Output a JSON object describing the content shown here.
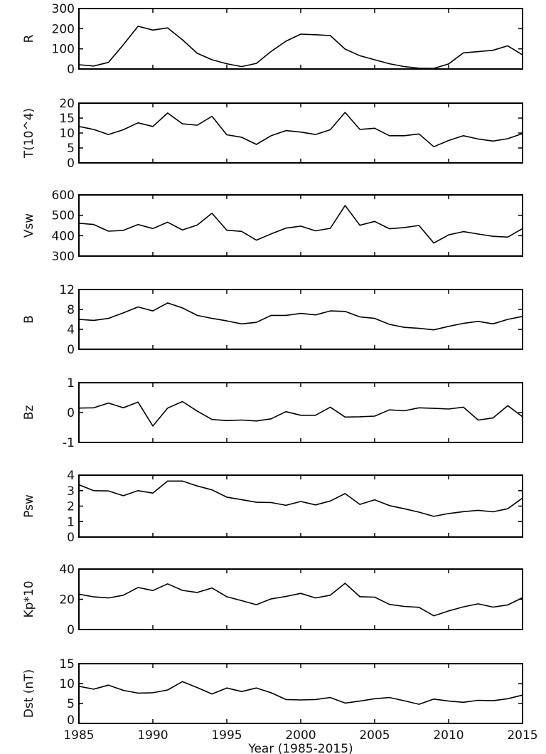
{
  "chart_data": {
    "type": "line",
    "xlabel": "Year (1985-2015)",
    "xlim": [
      1985,
      2015
    ],
    "x_ticks": [
      1985,
      1990,
      1995,
      2000,
      2005,
      2010,
      2015
    ],
    "x_tick_labels": [
      "1985",
      "1990",
      "1995",
      "2000",
      "2005",
      "2010",
      "2015"
    ],
    "x": [
      1985,
      1986,
      1987,
      1988,
      1989,
      1990,
      1991,
      1992,
      1993,
      1994,
      1995,
      1996,
      1997,
      1998,
      1999,
      2000,
      2001,
      2002,
      2003,
      2004,
      2005,
      2006,
      2007,
      2008,
      2009,
      2010,
      2011,
      2012,
      2013,
      2014,
      2015
    ],
    "grid": false,
    "panels": [
      {
        "ylabel": "R",
        "ylim": [
          0,
          300
        ],
        "y_ticks": [
          0,
          100,
          200,
          300
        ],
        "y_tick_labels": [
          "0",
          "100",
          "200",
          "300"
        ],
        "values": [
          21,
          15,
          33,
          120,
          212,
          193,
          204,
          145,
          78,
          46,
          26,
          12,
          28,
          87,
          138,
          173,
          170,
          166,
          99,
          66,
          46,
          26,
          12,
          4,
          3,
          25,
          80,
          86,
          93,
          115,
          70
        ]
      },
      {
        "ylabel": "T(10^4)",
        "ylabel_base": "T(10",
        "ylabel_sup": "4",
        "ylabel_end": ")",
        "ylim": [
          0,
          20
        ],
        "y_ticks": [
          0,
          5,
          10,
          15,
          20
        ],
        "y_tick_labels": [
          "0",
          "5",
          "10",
          "15",
          "20"
        ],
        "values": [
          12.2,
          11.2,
          9.5,
          11.1,
          13.4,
          12.2,
          16.7,
          13.1,
          12.6,
          15.6,
          9.4,
          8.6,
          6.2,
          9.1,
          10.8,
          10.3,
          9.5,
          11.1,
          16.9,
          11.2,
          11.6,
          9.1,
          9.1,
          9.7,
          5.4,
          7.5,
          9.1,
          8.0,
          7.3,
          8.1,
          9.8
        ]
      },
      {
        "ylabel": "Vsw",
        "ylim": [
          300,
          600
        ],
        "y_ticks": [
          300,
          400,
          500,
          600
        ],
        "y_tick_labels": [
          "300",
          "400",
          "500",
          "600"
        ],
        "values": [
          461,
          455,
          422,
          426,
          455,
          435,
          466,
          428,
          452,
          510,
          427,
          421,
          378,
          409,
          437,
          447,
          424,
          436,
          548,
          451,
          470,
          434,
          440,
          450,
          364,
          404,
          420,
          408,
          397,
          393,
          435
        ]
      },
      {
        "ylabel": "B",
        "ylim": [
          0,
          12
        ],
        "y_ticks": [
          0,
          4,
          8,
          12
        ],
        "y_tick_labels": [
          "0",
          "4",
          "8",
          "12"
        ],
        "values": [
          6.0,
          5.8,
          6.2,
          7.3,
          8.5,
          7.7,
          9.3,
          8.3,
          6.8,
          6.2,
          5.7,
          5.1,
          5.4,
          6.8,
          6.8,
          7.2,
          6.9,
          7.7,
          7.6,
          6.5,
          6.2,
          5.0,
          4.4,
          4.2,
          3.9,
          4.6,
          5.2,
          5.6,
          5.1,
          6.0,
          6.6
        ]
      },
      {
        "ylabel": "Bz",
        "ylim": [
          -1,
          1
        ],
        "y_ticks": [
          -1,
          0,
          1
        ],
        "y_tick_labels": [
          "-1",
          "0",
          "1"
        ],
        "values": [
          0.15,
          0.16,
          0.32,
          0.16,
          0.35,
          -0.45,
          0.15,
          0.37,
          0.05,
          -0.23,
          -0.27,
          -0.25,
          -0.28,
          -0.21,
          0.03,
          -0.09,
          -0.09,
          0.18,
          -0.15,
          -0.14,
          -0.12,
          0.09,
          0.06,
          0.16,
          0.14,
          0.12,
          0.18,
          -0.25,
          -0.18,
          0.23,
          -0.14
        ]
      },
      {
        "ylabel": "Psw",
        "ylim": [
          0,
          4
        ],
        "y_ticks": [
          0,
          1,
          2,
          3,
          4
        ],
        "y_tick_labels": [
          "0",
          "1",
          "2",
          "3",
          "4"
        ],
        "values": [
          3.38,
          3.0,
          2.98,
          2.67,
          3.0,
          2.84,
          3.62,
          3.62,
          3.3,
          3.05,
          2.58,
          2.42,
          2.25,
          2.23,
          2.05,
          2.3,
          2.08,
          2.33,
          2.81,
          2.11,
          2.41,
          2.03,
          1.83,
          1.61,
          1.34,
          1.52,
          1.64,
          1.73,
          1.63,
          1.83,
          2.52
        ]
      },
      {
        "ylabel": "Kp*10",
        "ylim": [
          0,
          40
        ],
        "y_ticks": [
          0,
          20,
          40
        ],
        "y_tick_labels": [
          "0",
          "20",
          "40"
        ],
        "values": [
          23.4,
          21.6,
          20.9,
          22.7,
          27.8,
          25.8,
          30.2,
          25.9,
          24.5,
          27.5,
          21.7,
          19.1,
          16.4,
          20.3,
          21.9,
          23.9,
          20.9,
          22.7,
          30.6,
          21.7,
          21.4,
          16.6,
          15.3,
          14.7,
          9.1,
          12.3,
          15.0,
          17.0,
          14.8,
          16.3,
          21.0
        ]
      },
      {
        "ylabel": "Dst (nT)",
        "ylim": [
          0,
          15
        ],
        "y_ticks": [
          0,
          5,
          10,
          15
        ],
        "y_tick_labels": [
          "0",
          "5",
          "10",
          "15"
        ],
        "values": [
          9.3,
          8.6,
          9.6,
          8.3,
          7.6,
          7.7,
          8.4,
          10.5,
          9.0,
          7.4,
          8.9,
          8.0,
          8.9,
          7.7,
          6.0,
          5.9,
          6.0,
          6.5,
          5.1,
          5.6,
          6.2,
          6.5,
          5.7,
          4.8,
          6.1,
          5.6,
          5.3,
          5.8,
          5.7,
          6.2,
          7.1
        ]
      }
    ]
  }
}
